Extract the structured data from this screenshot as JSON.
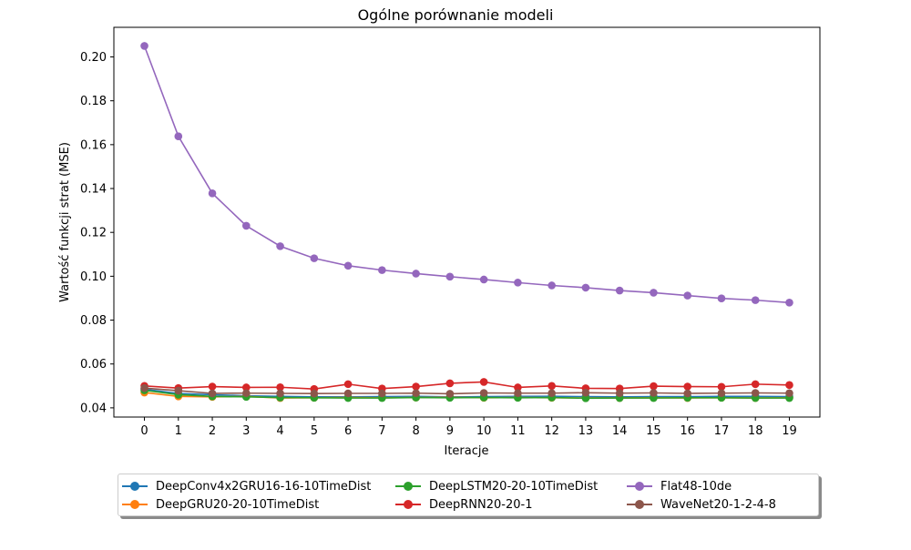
{
  "chart_data": {
    "type": "line",
    "title": "Ogólne porównanie modeli",
    "xlabel": "Iteracje",
    "ylabel": "Wartość funkcji strat (MSE)",
    "x": [
      0,
      1,
      2,
      3,
      4,
      5,
      6,
      7,
      8,
      9,
      10,
      11,
      12,
      13,
      14,
      15,
      16,
      17,
      18,
      19
    ],
    "xlim": [
      -0.9,
      19.9
    ],
    "ylim": [
      0.0358,
      0.2135
    ],
    "yticks": [
      0.04,
      0.06,
      0.08,
      0.1,
      0.12,
      0.14,
      0.16,
      0.18,
      0.2
    ],
    "ytick_labels": [
      "0.04",
      "0.06",
      "0.08",
      "0.10",
      "0.12",
      "0.14",
      "0.16",
      "0.18",
      "0.20"
    ],
    "grid": false,
    "legend_position": "bottom-center, below plot",
    "series": [
      {
        "name": "DeepConv4x2GRU16-16-10TimeDist",
        "color": "#1f77b4",
        "values": [
          0.0485,
          0.0465,
          0.046,
          0.0455,
          0.0452,
          0.045,
          0.045,
          0.0451,
          0.0452,
          0.045,
          0.0451,
          0.0452,
          0.0453,
          0.0451,
          0.045,
          0.0451,
          0.0451,
          0.0452,
          0.0452,
          0.0451
        ]
      },
      {
        "name": "DeepGRU20-20-10TimeDist",
        "color": "#ff7f0e",
        "values": [
          0.047,
          0.0452,
          0.045,
          0.0452,
          0.0445,
          0.0446,
          0.0447,
          0.0446,
          0.0447,
          0.0448,
          0.0446,
          0.0447,
          0.0446,
          0.0445,
          0.0445,
          0.0446,
          0.0445,
          0.0446,
          0.0445,
          0.0446
        ]
      },
      {
        "name": "DeepLSTM20-20-10TimeDist",
        "color": "#2ca02c",
        "values": [
          0.048,
          0.046,
          0.0452,
          0.045,
          0.0447,
          0.0446,
          0.0445,
          0.0445,
          0.0447,
          0.0446,
          0.0447,
          0.0446,
          0.0447,
          0.0444,
          0.0445,
          0.0445,
          0.0446,
          0.0446,
          0.0445,
          0.0445
        ]
      },
      {
        "name": "DeepRNN20-20-1",
        "color": "#d62728",
        "values": [
          0.05,
          0.049,
          0.0497,
          0.0493,
          0.0494,
          0.0486,
          0.0508,
          0.0488,
          0.0497,
          0.0512,
          0.0518,
          0.0493,
          0.05,
          0.0489,
          0.0488,
          0.0499,
          0.0497,
          0.0496,
          0.0508,
          0.0504
        ]
      },
      {
        "name": "Flat48-10de",
        "color": "#9467bd",
        "values": [
          0.205,
          0.1638,
          0.1378,
          0.123,
          0.1137,
          0.1082,
          0.1048,
          0.1028,
          0.1012,
          0.0998,
          0.0985,
          0.0971,
          0.0958,
          0.0948,
          0.0935,
          0.0925,
          0.0912,
          0.0899,
          0.0891,
          0.088
        ]
      },
      {
        "name": "WaveNet20-1-2-4-8",
        "color": "#8c564b",
        "values": [
          0.049,
          0.0478,
          0.0466,
          0.0467,
          0.0466,
          0.0465,
          0.0466,
          0.0466,
          0.0467,
          0.0464,
          0.0468,
          0.0467,
          0.0467,
          0.0469,
          0.0467,
          0.0468,
          0.0466,
          0.0467,
          0.0468,
          0.0467
        ]
      }
    ]
  }
}
